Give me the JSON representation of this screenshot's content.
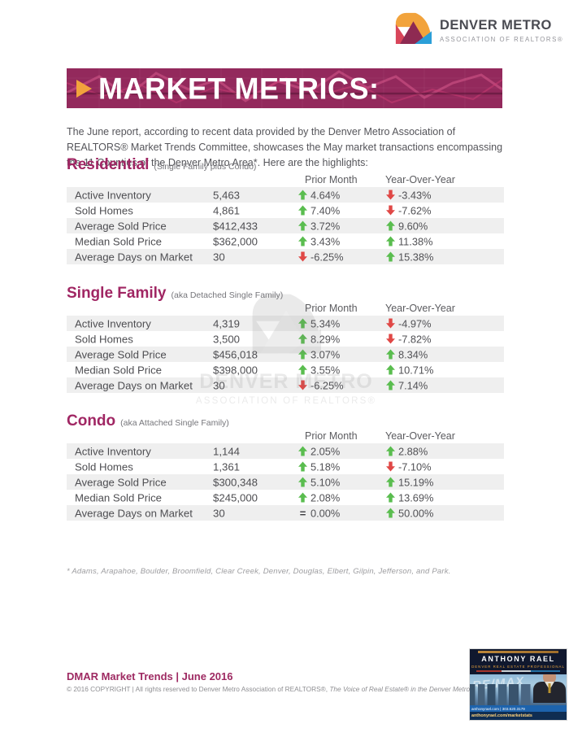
{
  "logo": {
    "title": "DENVER METRO",
    "subtitle": "ASSOCIATION OF REALTORS®"
  },
  "banner": {
    "title": "MARKET METRICS:"
  },
  "intro": "The June report, according to recent data provided by the Denver Metro Association of REALTORS® Market Trends Committee,  showcases the May market transactions encompassing the 11 Counties of the Denver Metro Area*. Here are the highlights:",
  "columns": {
    "prior_month": "Prior Month",
    "yoy": "Year-Over-Year"
  },
  "sections": [
    {
      "title": "Residential",
      "subtitle": "(Single Family plus Condo)",
      "rows": [
        {
          "label": "Active Inventory",
          "value": "5,463",
          "prior": {
            "dir": "up",
            "text": "4.64%"
          },
          "yoy": {
            "dir": "down",
            "text": "-3.43%"
          }
        },
        {
          "label": "Sold Homes",
          "value": "4,861",
          "prior": {
            "dir": "up",
            "text": "7.40%"
          },
          "yoy": {
            "dir": "down",
            "text": "-7.62%"
          }
        },
        {
          "label": "Average Sold Price",
          "value": "$412,433",
          "prior": {
            "dir": "up",
            "text": "3.72%"
          },
          "yoy": {
            "dir": "up",
            "text": "9.60%"
          }
        },
        {
          "label": "Median Sold Price",
          "value": "$362,000",
          "prior": {
            "dir": "up",
            "text": "3.43%"
          },
          "yoy": {
            "dir": "up",
            "text": "11.38%"
          }
        },
        {
          "label": "Average Days on Market",
          "value": "30",
          "prior": {
            "dir": "down",
            "text": "-6.25%"
          },
          "yoy": {
            "dir": "up",
            "text": "15.38%"
          }
        }
      ]
    },
    {
      "title": "Single Family",
      "subtitle": "(aka Detached Single Family)",
      "rows": [
        {
          "label": "Active Inventory",
          "value": "4,319",
          "prior": {
            "dir": "up",
            "text": "5.34%"
          },
          "yoy": {
            "dir": "down",
            "text": "-4.97%"
          }
        },
        {
          "label": "Sold Homes",
          "value": "3,500",
          "prior": {
            "dir": "up",
            "text": "8.29%"
          },
          "yoy": {
            "dir": "down",
            "text": "-7.82%"
          }
        },
        {
          "label": "Average Sold Price",
          "value": "$456,018",
          "prior": {
            "dir": "up",
            "text": "3.07%"
          },
          "yoy": {
            "dir": "up",
            "text": "8.34%"
          }
        },
        {
          "label": "Median Sold Price",
          "value": "$398,000",
          "prior": {
            "dir": "up",
            "text": "3.55%"
          },
          "yoy": {
            "dir": "up",
            "text": "10.71%"
          }
        },
        {
          "label": "Average Days on Market",
          "value": "30",
          "prior": {
            "dir": "down",
            "text": "-6.25%"
          },
          "yoy": {
            "dir": "up",
            "text": "7.14%"
          }
        }
      ]
    },
    {
      "title": "Condo",
      "subtitle": "(aka Attached Single Family)",
      "rows": [
        {
          "label": "Active Inventory",
          "value": "1,144",
          "prior": {
            "dir": "up",
            "text": "2.05%"
          },
          "yoy": {
            "dir": "up",
            "text": "2.88%"
          }
        },
        {
          "label": "Sold Homes",
          "value": "1,361",
          "prior": {
            "dir": "up",
            "text": "5.18%"
          },
          "yoy": {
            "dir": "down",
            "text": "-7.10%"
          }
        },
        {
          "label": "Average Sold Price",
          "value": "$300,348",
          "prior": {
            "dir": "up",
            "text": "5.10%"
          },
          "yoy": {
            "dir": "up",
            "text": "15.19%"
          }
        },
        {
          "label": "Median Sold Price",
          "value": "$245,000",
          "prior": {
            "dir": "up",
            "text": "2.08%"
          },
          "yoy": {
            "dir": "up",
            "text": "13.69%"
          }
        },
        {
          "label": "Average Days on Market",
          "value": "30",
          "prior": {
            "dir": "flat",
            "text": "0.00%"
          },
          "yoy": {
            "dir": "up",
            "text": "50.00%"
          }
        }
      ]
    }
  ],
  "watermark": {
    "line1": "DENVER METRO",
    "line2": "ASSOCIATION OF REALTORS®"
  },
  "footnote": "* Adams, Arapahoe, Boulder, Broomfield, Clear Creek, Denver, Douglas, Elbert, Gilpin, Jefferson, and Park.",
  "footer": {
    "title": "DMAR Market Trends | June 2016",
    "copyright": "© 2016 COPYRIGHT | All rights reserved to Denver Metro Association of REALTORS®, ",
    "copyright_italic": "The Voice of Real Estate® in the Denver Metro ar"
  },
  "badge": {
    "name": "ANTHONY RAEL",
    "subtitle": "DENVER REAL ESTATE PROFESSIONAL",
    "remax": "RE/MAX",
    "bar1": "anthonyrael.com | 303.520.3179",
    "bar2": "anthonyrael.com/marketstats"
  },
  "colors": {
    "accent_magenta": "#9E2A62",
    "banner_bg": "#93295C",
    "up_green": "#5ABD4F",
    "down_red": "#E04846",
    "row_alt_bg": "#EFEFEF",
    "logo_orange": "#F2A33C",
    "logo_crimson": "#D8455A",
    "logo_maroon": "#8E2A52",
    "logo_blue": "#2B9FD8"
  }
}
